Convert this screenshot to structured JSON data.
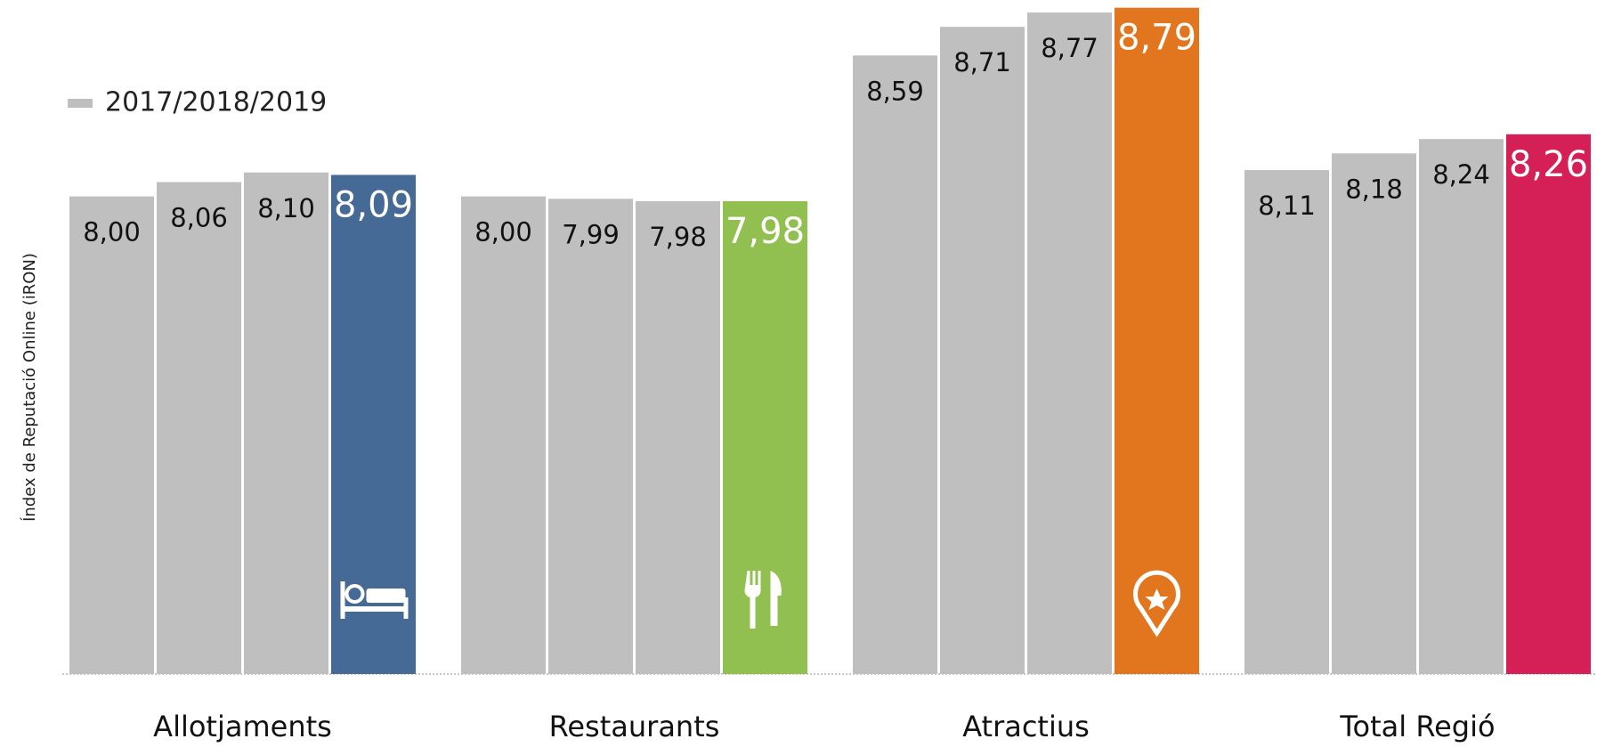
{
  "chart_data": {
    "type": "bar",
    "y_axis_label": "Índex de Reputació Online (iRON)",
    "legend": {
      "label": "2017/2018/2019",
      "color": "#bfbfbf"
    },
    "categories": [
      "Allotjaments",
      "Restaurants",
      "Atractius",
      "Total Regió"
    ],
    "groups": [
      {
        "values": [
          8.0,
          8.06,
          8.1,
          8.09
        ],
        "value_labels": [
          "8,00",
          "8,06",
          "8,10",
          "8,09"
        ],
        "highlight_color": "#466a96"
      },
      {
        "values": [
          8.0,
          7.99,
          7.98,
          7.98
        ],
        "value_labels": [
          "8,00",
          "7,99",
          "7,98",
          "7,98"
        ],
        "highlight_color": "#92c050"
      },
      {
        "values": [
          8.59,
          8.71,
          8.77,
          8.79
        ],
        "value_labels": [
          "8,59",
          "8,71",
          "8,77",
          "8,79"
        ],
        "highlight_color": "#e2761f"
      },
      {
        "values": [
          8.11,
          8.18,
          8.24,
          8.26
        ],
        "value_labels": [
          "8,11",
          "8,18",
          "8,24",
          "8,26"
        ],
        "highlight_color": "#d41f57"
      }
    ],
    "ylim": [
      6,
      8.8
    ]
  }
}
